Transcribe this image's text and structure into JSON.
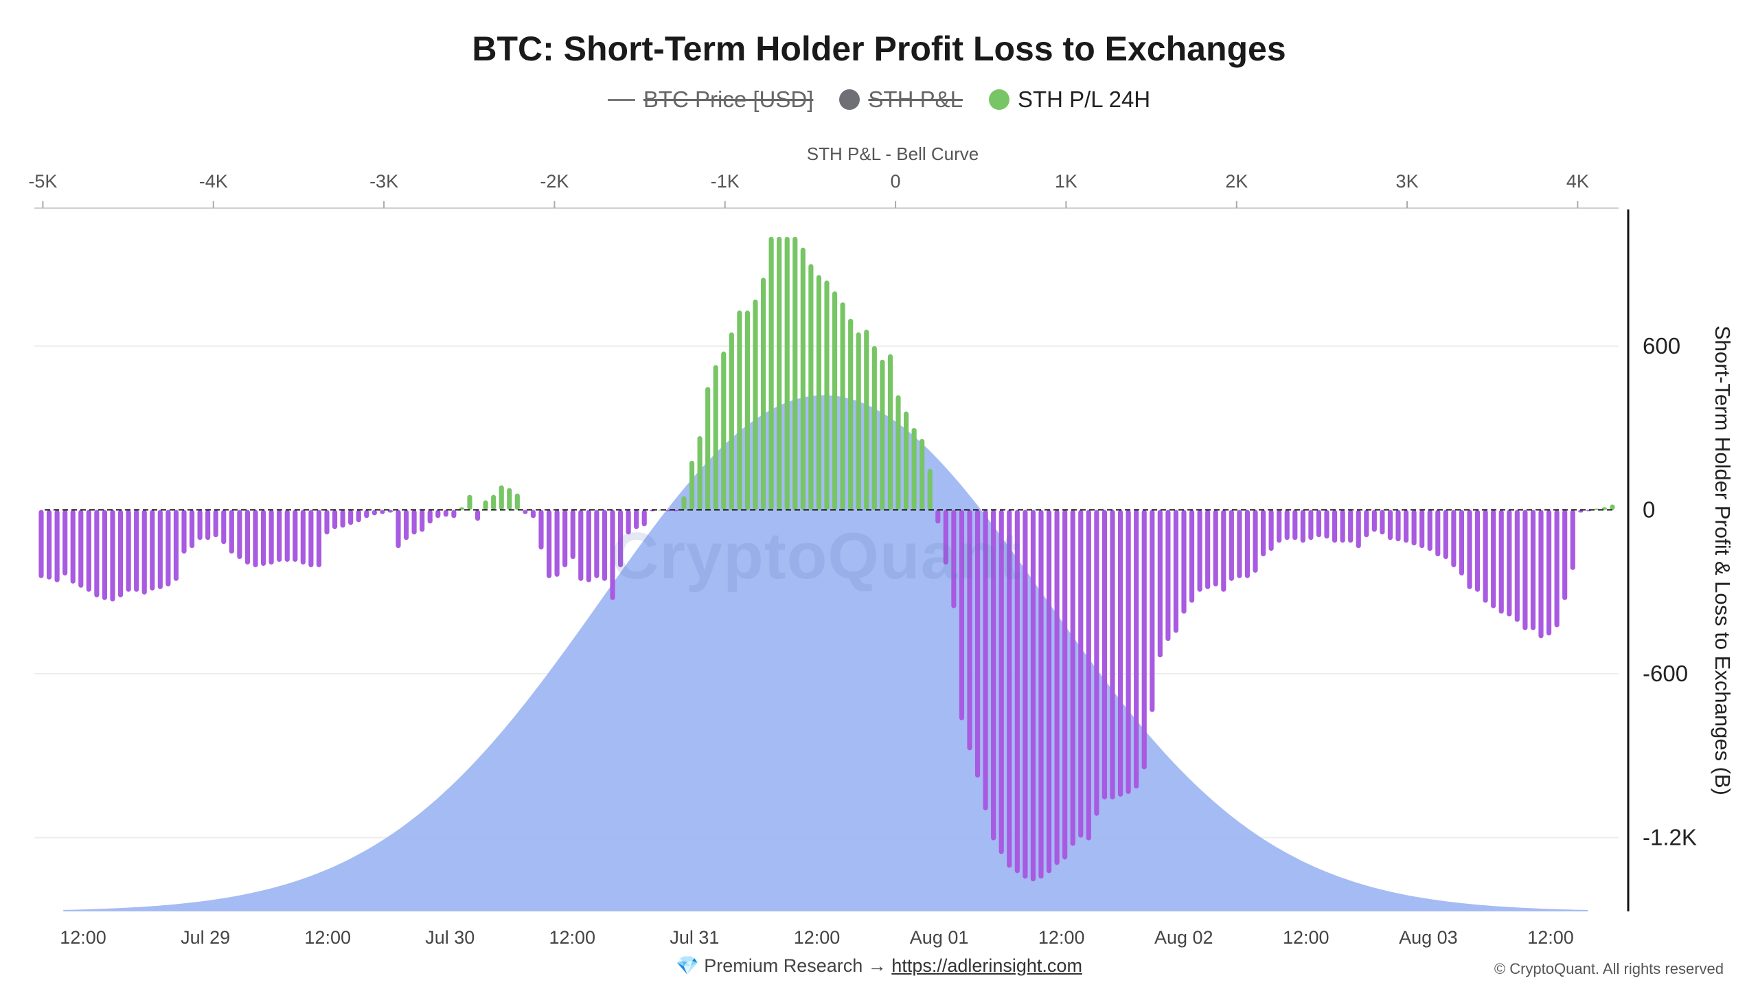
{
  "title": "BTC: Short-Term Holder Profit Loss to Exchanges",
  "legend": [
    {
      "label": "BTC Price [USD]",
      "symbol": "line",
      "color": "#777777",
      "enabled": false
    },
    {
      "label": "STH P&L",
      "symbol": "dot",
      "color": "#6f6f76",
      "enabled": false
    },
    {
      "label": "STH P/L 24H",
      "symbol": "dot",
      "color": "#77c565",
      "enabled": true
    }
  ],
  "watermark": "CryptoQuant",
  "footer": {
    "gem": "💎",
    "text": "Premium Research →",
    "link": "https://adlerinsight.com"
  },
  "copyright": "© CryptoQuant. All rights reserved",
  "chart_data": {
    "type": "bar",
    "top_axis": {
      "title": "STH P&L - Bell Curve",
      "ticks": [
        -5000,
        -4000,
        -3000,
        -2000,
        -1000,
        0,
        1000,
        2000,
        3000,
        4000
      ],
      "tick_labels": [
        "-5K",
        "-4K",
        "-3K",
        "-2K",
        "-1K",
        "0",
        "1K",
        "2K",
        "3K",
        "4K"
      ],
      "range": [
        -5050,
        4240
      ]
    },
    "bell_curve": {
      "series": "STH P&L - Bell Curve",
      "color": "#9bb4f2",
      "mean": -420,
      "sd": 1300,
      "peak_y": 420
    },
    "x_axis": {
      "tick_labels": [
        "12:00",
        "Jul 29",
        "12:00",
        "Jul 30",
        "12:00",
        "Jul 31",
        "12:00",
        "Aug 01",
        "12:00",
        "Aug 02",
        "12:00",
        "Aug 03",
        "12:00"
      ],
      "start": "Jul 28 00:00",
      "end": "Aug 03 17:00",
      "bar_interval_hours": 1
    },
    "y_axis": {
      "title": "Short-Term Holder Profit & Loss to Exchanges (B)",
      "ticks": [
        600,
        0,
        -600,
        -1200
      ],
      "tick_labels": [
        "600",
        "0",
        "-600",
        "-1.2K"
      ],
      "range": [
        -1470,
        1100
      ],
      "position": "right"
    },
    "series": [
      {
        "name": "STH P/L 24H",
        "positive_color": "#77c565",
        "negative_color": "#a85ae0",
        "values": [
          -250,
          -255,
          -265,
          -240,
          -270,
          -285,
          -300,
          -320,
          -330,
          -335,
          -320,
          -300,
          -300,
          -310,
          -295,
          -290,
          -280,
          -260,
          -160,
          -140,
          -110,
          -110,
          -100,
          -125,
          -160,
          -180,
          -200,
          -210,
          -205,
          -200,
          -190,
          -190,
          -190,
          -200,
          -210,
          -210,
          -90,
          -70,
          -65,
          -55,
          -45,
          -30,
          -20,
          -15,
          -10,
          -140,
          -110,
          -90,
          -80,
          -50,
          -30,
          -25,
          -30,
          10,
          55,
          -40,
          35,
          55,
          90,
          80,
          60,
          -15,
          -30,
          -145,
          -250,
          -245,
          -210,
          -180,
          -260,
          -265,
          -250,
          -260,
          -330,
          -210,
          -90,
          -70,
          -60,
          -5,
          0,
          -5,
          -5,
          50,
          180,
          270,
          450,
          530,
          580,
          650,
          730,
          730,
          770,
          850,
          1000,
          1000,
          1000,
          1000,
          960,
          900,
          860,
          840,
          800,
          760,
          700,
          650,
          660,
          600,
          550,
          570,
          420,
          360,
          300,
          260,
          150,
          -50,
          -200,
          -360,
          -770,
          -880,
          -980,
          -1100,
          -1210,
          -1260,
          -1310,
          -1330,
          -1350,
          -1360,
          -1350,
          -1330,
          -1300,
          -1280,
          -1230,
          -1200,
          -1210,
          -1120,
          -1060,
          -1060,
          -1050,
          -1040,
          -1020,
          -950,
          -740,
          -540,
          -480,
          -450,
          -380,
          -340,
          -300,
          -290,
          -280,
          -300,
          -260,
          -250,
          -250,
          -230,
          -170,
          -150,
          -120,
          -110,
          -110,
          -120,
          -110,
          -100,
          -105,
          -120,
          -120,
          -120,
          -140,
          -100,
          -80,
          -90,
          -110,
          -115,
          -120,
          -130,
          -140,
          -150,
          -170,
          -180,
          -210,
          -240,
          -290,
          -300,
          -340,
          -360,
          -380,
          -390,
          -410,
          -440,
          -440,
          -470,
          -460,
          -430,
          -330,
          -220,
          -10,
          -5,
          5,
          10,
          20
        ]
      }
    ],
    "grid": true,
    "legend_position": "top-center"
  }
}
